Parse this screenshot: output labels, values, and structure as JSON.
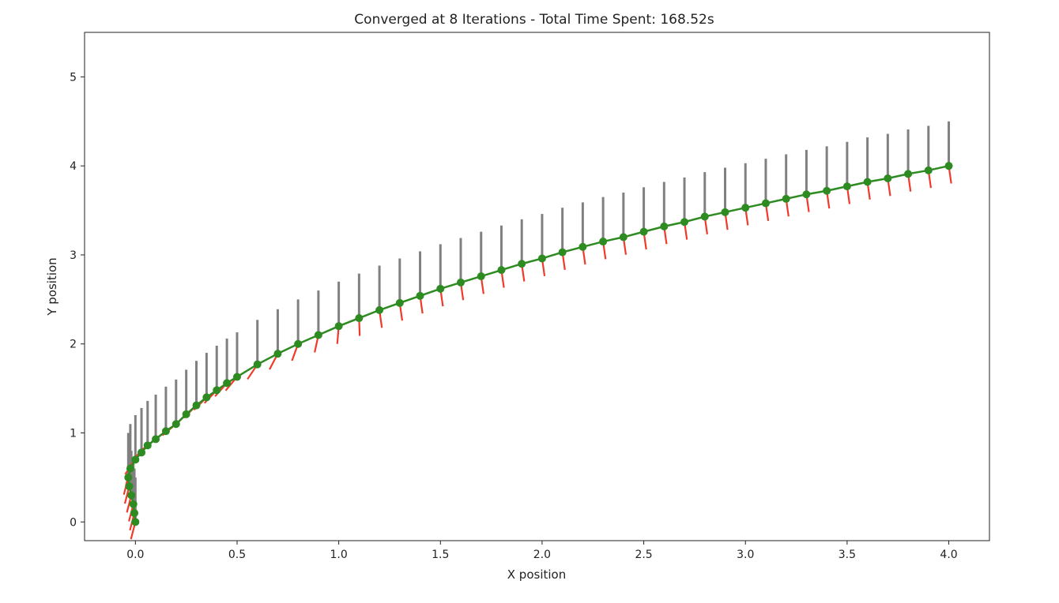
{
  "chart_data": {
    "type": "line",
    "title": "Converged at 8 Iterations - Total Time Spent: 168.52s",
    "xlabel": "X position",
    "ylabel": "Y position",
    "xlim": [
      -0.25,
      4.2
    ],
    "ylim": [
      -0.21,
      5.5
    ],
    "xticks": [
      "0.0",
      "0.5",
      "1.0",
      "1.5",
      "2.0",
      "2.5",
      "3.0",
      "3.5",
      "4.0"
    ],
    "xtick_values": [
      0,
      0.5,
      1,
      1.5,
      2,
      2.5,
      3,
      3.5,
      4
    ],
    "yticks": [
      "0",
      "1",
      "2",
      "3",
      "4",
      "5"
    ],
    "ytick_values": [
      0,
      1,
      2,
      3,
      4,
      5
    ],
    "grid": false,
    "path": {
      "x": [
        0,
        -0.005,
        -0.01,
        -0.02,
        -0.03,
        -0.035,
        -0.025,
        0,
        0.03,
        0.06,
        0.1,
        0.15,
        0.2,
        0.25,
        0.3,
        0.35,
        0.4,
        0.45,
        0.5,
        0.6,
        0.7,
        0.8,
        0.9,
        1.0,
        1.1,
        1.2,
        1.3,
        1.4,
        1.5,
        1.6,
        1.7,
        1.8,
        1.9,
        2.0,
        2.1,
        2.2,
        2.3,
        2.4,
        2.5,
        2.6,
        2.7,
        2.8,
        2.9,
        3.0,
        3.1,
        3.2,
        3.3,
        3.4,
        3.5,
        3.6,
        3.7,
        3.8,
        3.9,
        4.0
      ],
      "y": [
        0,
        0.1,
        0.2,
        0.3,
        0.4,
        0.5,
        0.6,
        0.7,
        0.78,
        0.86,
        0.93,
        1.02,
        1.1,
        1.21,
        1.31,
        1.4,
        1.48,
        1.56,
        1.63,
        1.77,
        1.89,
        2.0,
        2.1,
        2.2,
        2.29,
        2.38,
        2.46,
        2.54,
        2.62,
        2.69,
        2.76,
        2.83,
        2.9,
        2.96,
        3.03,
        3.09,
        3.15,
        3.2,
        3.26,
        3.32,
        3.37,
        3.43,
        3.48,
        3.53,
        3.58,
        3.63,
        3.68,
        3.72,
        3.77,
        3.82,
        3.86,
        3.91,
        3.95,
        4.0
      ]
    },
    "heading_length": 0.5,
    "control_length": 0.2,
    "colors": {
      "path": "#2e8b22",
      "heading": "#808080",
      "control": "#f03a2a",
      "axes": "#222222"
    }
  }
}
